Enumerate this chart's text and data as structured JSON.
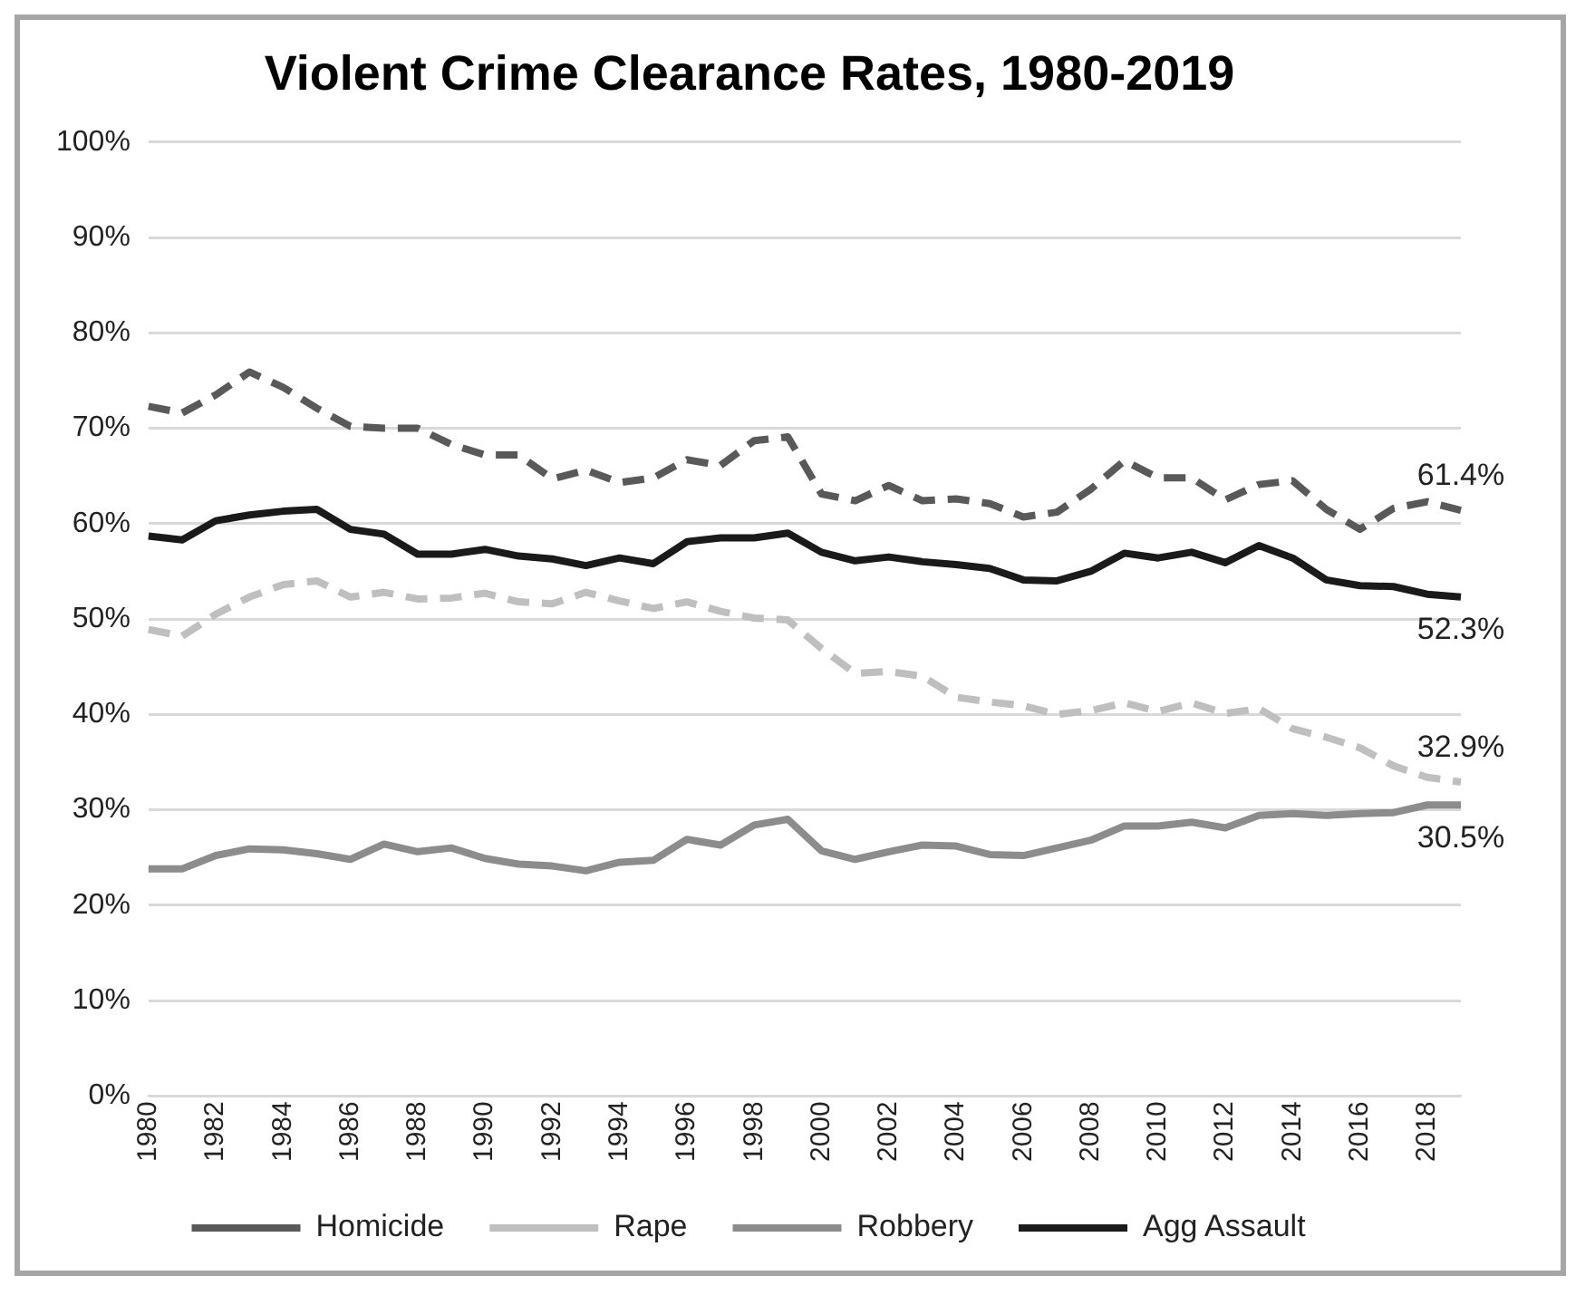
{
  "chart_data": {
    "type": "line",
    "title": "Violent Crime Clearance Rates, 1980-2019",
    "categories": [
      "1980",
      null,
      "1982",
      null,
      "1984",
      null,
      "1986",
      null,
      "1988",
      null,
      "1990",
      null,
      "1992",
      null,
      "1994",
      null,
      "1996",
      null,
      "1998",
      null,
      "2000",
      null,
      "2002",
      null,
      "2004",
      null,
      "2006",
      null,
      "2008",
      null,
      "2010",
      null,
      "2012",
      null,
      "2014",
      null,
      "2016",
      null,
      "2018",
      null
    ],
    "series": [
      {
        "name": "Homicide",
        "color": "#595959",
        "line_style": "dashed",
        "values": [
          72.3,
          71.6,
          73.5,
          75.9,
          74.3,
          72.1,
          70.2,
          70.0,
          70.0,
          68.3,
          67.2,
          67.2,
          64.7,
          65.6,
          64.3,
          64.8,
          66.7,
          66.1,
          68.7,
          69.1,
          63.1,
          62.4,
          64.0,
          62.4,
          62.6,
          62.1,
          60.7,
          61.2,
          63.6,
          66.6,
          64.8,
          64.8,
          62.5,
          64.1,
          64.5,
          61.5,
          59.4,
          61.6,
          62.3,
          61.4
        ],
        "value_labels": [
          null,
          null,
          null,
          null,
          null,
          null,
          null,
          null,
          null,
          null,
          null,
          null,
          null,
          null,
          null,
          null,
          null,
          null,
          null,
          null,
          null,
          null,
          null,
          null,
          null,
          null,
          null,
          null,
          null,
          null,
          null,
          null,
          null,
          null,
          null,
          null,
          null,
          null,
          null,
          "61.4%"
        ]
      },
      {
        "name": "Rape",
        "color": "#bfbfbf",
        "line_style": "dashed",
        "values": [
          48.9,
          48.2,
          50.5,
          52.3,
          53.6,
          54.0,
          52.3,
          52.8,
          52.1,
          52.2,
          52.7,
          51.8,
          51.6,
          52.8,
          51.9,
          51.1,
          51.8,
          50.8,
          50.1,
          49.9,
          46.9,
          44.3,
          44.5,
          44.0,
          41.8,
          41.3,
          40.9,
          40.0,
          40.4,
          41.2,
          40.3,
          41.2,
          40.1,
          40.6,
          38.5,
          37.6,
          36.5,
          34.6,
          33.4,
          32.9
        ],
        "value_labels": [
          null,
          null,
          null,
          null,
          null,
          null,
          null,
          null,
          null,
          null,
          null,
          null,
          null,
          null,
          null,
          null,
          null,
          null,
          null,
          null,
          null,
          null,
          null,
          null,
          null,
          null,
          null,
          null,
          null,
          null,
          null,
          null,
          null,
          null,
          null,
          null,
          null,
          null,
          null,
          "32.9%"
        ]
      },
      {
        "name": "Robbery",
        "color": "#8c8c8c",
        "line_style": "solid",
        "values": [
          23.8,
          23.8,
          25.2,
          25.9,
          25.8,
          25.4,
          24.8,
          26.4,
          25.6,
          26.0,
          24.9,
          24.3,
          24.1,
          23.6,
          24.5,
          24.7,
          26.9,
          26.3,
          28.4,
          29.0,
          25.7,
          24.8,
          25.6,
          26.3,
          26.2,
          25.3,
          25.2,
          26.0,
          26.8,
          28.3,
          28.3,
          28.7,
          28.1,
          29.4,
          29.6,
          29.4,
          29.6,
          29.7,
          30.5,
          30.5
        ],
        "value_labels": [
          null,
          null,
          null,
          null,
          null,
          null,
          null,
          null,
          null,
          null,
          null,
          null,
          null,
          null,
          null,
          null,
          null,
          null,
          null,
          null,
          null,
          null,
          null,
          null,
          null,
          null,
          null,
          null,
          null,
          null,
          null,
          null,
          null,
          null,
          null,
          null,
          null,
          null,
          null,
          "30.5%"
        ]
      },
      {
        "name": "Agg Assault",
        "color": "#1a1a1a",
        "line_style": "solid",
        "values": [
          58.7,
          58.3,
          60.3,
          60.9,
          61.3,
          61.5,
          59.4,
          58.9,
          56.8,
          56.8,
          57.3,
          56.6,
          56.3,
          55.6,
          56.4,
          55.8,
          58.1,
          58.5,
          58.5,
          59.0,
          57.0,
          56.1,
          56.5,
          56.0,
          55.7,
          55.3,
          54.1,
          54.0,
          55.0,
          56.9,
          56.4,
          57.0,
          55.9,
          57.7,
          56.4,
          54.1,
          53.5,
          53.4,
          52.6,
          52.3
        ],
        "value_labels": [
          null,
          null,
          null,
          null,
          null,
          null,
          null,
          null,
          null,
          null,
          null,
          null,
          null,
          null,
          null,
          null,
          null,
          null,
          null,
          null,
          null,
          null,
          null,
          null,
          null,
          null,
          null,
          null,
          null,
          null,
          null,
          null,
          null,
          null,
          null,
          null,
          null,
          null,
          null,
          "52.3%"
        ]
      }
    ],
    "ylim": [
      0,
      100
    ],
    "yticks": [
      {
        "value": 0,
        "label": "0%"
      },
      {
        "value": 10,
        "label": "10%"
      },
      {
        "value": 20,
        "label": "20%"
      },
      {
        "value": 30,
        "label": "30%"
      },
      {
        "value": 40,
        "label": "40%"
      },
      {
        "value": 50,
        "label": "50%"
      },
      {
        "value": 60,
        "label": "60%"
      },
      {
        "value": 70,
        "label": "70%"
      },
      {
        "value": 80,
        "label": "80%"
      },
      {
        "value": 90,
        "label": "90%"
      },
      {
        "value": 100,
        "label": "100%"
      }
    ],
    "grid": "y",
    "legend": "bottom",
    "marker": "none"
  }
}
